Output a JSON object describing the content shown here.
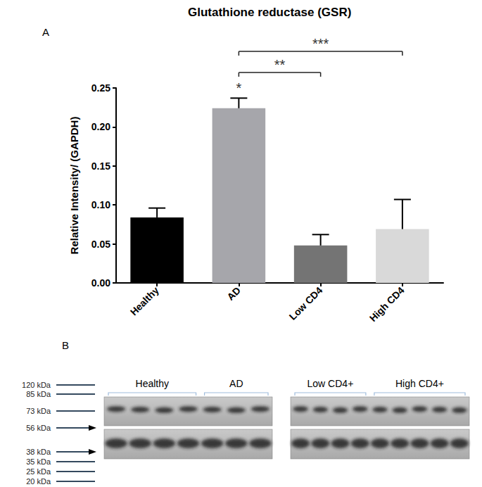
{
  "chart_data": {
    "type": "bar",
    "panel_label": "A",
    "title": "Glutathione reductase (GSR)",
    "y_label": "Relative Intensity/ (GAPDH)",
    "categories": [
      "Healthy",
      "AD",
      "Low CD4",
      "High CD4"
    ],
    "values": [
      0.084,
      0.224,
      0.048,
      0.069
    ],
    "errors": [
      0.012,
      0.013,
      0.014,
      0.038
    ],
    "colors": [
      "#000000",
      "#a6a6ab",
      "#747474",
      "#d9d9d9"
    ],
    "ylim": [
      0,
      0.25
    ],
    "yticks": [
      {
        "value": 0,
        "label": "0.00"
      },
      {
        "value": 0.05,
        "label": "0.05"
      },
      {
        "value": 0.1,
        "label": "0.10"
      },
      {
        "value": 0.15,
        "label": "0.15"
      },
      {
        "value": 0.2,
        "label": "0.20"
      },
      {
        "value": 0.25,
        "label": "0.25"
      }
    ],
    "grid": false,
    "annotations": [
      {
        "text": "*",
        "category": "AD"
      }
    ],
    "brackets": [
      {
        "from": "AD",
        "to": "Low CD4",
        "text": "**"
      },
      {
        "from": "AD",
        "to": "High CD4",
        "text": "***"
      }
    ]
  },
  "blot": {
    "panel_label": "B",
    "markers": [
      {
        "label": "120 kDa",
        "arrow": false
      },
      {
        "label": "85 kDa",
        "arrow": false
      },
      {
        "label": "73 kDa",
        "arrow": false
      },
      {
        "label": "56 kDa",
        "arrow": true
      },
      {
        "label": "38 kDa",
        "arrow": true
      },
      {
        "label": "35 kDa",
        "arrow": false
      },
      {
        "label": "25 kDa",
        "arrow": false
      },
      {
        "label": "20 kDa",
        "arrow": false
      }
    ],
    "membranes": [
      {
        "groups": [
          {
            "label": "Healthy",
            "lanes": 4
          },
          {
            "label": "AD",
            "lanes": 3
          }
        ]
      },
      {
        "groups": [
          {
            "label": "Low CD4+",
            "lanes": 4
          },
          {
            "label": "High CD4+",
            "lanes": 5
          }
        ]
      }
    ]
  }
}
